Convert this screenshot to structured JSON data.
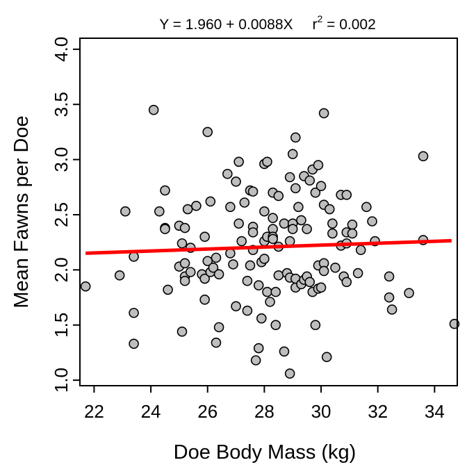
{
  "chart_data": {
    "type": "scatter",
    "title_parts": {
      "equation": "Y = 1.960 + 0.0088X",
      "r_label": "r",
      "r_exponent": "2",
      "r_value": " = 0.002"
    },
    "xlabel": "Doe Body Mass (kg)",
    "ylabel": "Mean Fawns per Doe",
    "xlim": [
      21.5,
      34.8
    ],
    "ylim": [
      0.95,
      4.1
    ],
    "xticks": [
      "22",
      "24",
      "26",
      "28",
      "30",
      "32",
      "34"
    ],
    "yticks": [
      "1.0",
      "1.5",
      "2.0",
      "2.5",
      "3.0",
      "3.5",
      "4.0"
    ],
    "grid": false,
    "legend": "none",
    "regression": {
      "intercept": 1.96,
      "slope": 0.0088,
      "x_range": [
        21.7,
        34.6
      ],
      "color": "#ff0000"
    },
    "marker_fill": "#bebebe",
    "marker_stroke": "#000000",
    "points": [
      [
        21.7,
        1.85
      ],
      [
        22.9,
        1.95
      ],
      [
        23.1,
        2.53
      ],
      [
        23.4,
        2.12
      ],
      [
        23.4,
        1.61
      ],
      [
        23.4,
        1.33
      ],
      [
        24.1,
        3.45
      ],
      [
        24.3,
        2.53
      ],
      [
        24.5,
        2.72
      ],
      [
        24.5,
        2.38
      ],
      [
        24.5,
        2.37
      ],
      [
        24.6,
        1.82
      ],
      [
        25.0,
        2.4
      ],
      [
        25.0,
        2.03
      ],
      [
        25.1,
        2.24
      ],
      [
        25.1,
        1.44
      ],
      [
        25.2,
        2.38
      ],
      [
        25.2,
        2.06
      ],
      [
        25.2,
        1.94
      ],
      [
        25.2,
        1.9
      ],
      [
        25.3,
        2.55
      ],
      [
        25.4,
        2.2
      ],
      [
        25.4,
        1.98
      ],
      [
        25.6,
        2.58
      ],
      [
        25.8,
        1.96
      ],
      [
        25.9,
        2.3
      ],
      [
        25.9,
        1.73
      ],
      [
        25.9,
        1.92
      ],
      [
        26.0,
        3.25
      ],
      [
        26.0,
        2.08
      ],
      [
        26.1,
        2.62
      ],
      [
        26.1,
        1.98
      ],
      [
        26.2,
        2.02
      ],
      [
        26.3,
        2.11
      ],
      [
        26.3,
        1.34
      ],
      [
        26.4,
        1.48
      ],
      [
        26.4,
        1.96
      ],
      [
        26.7,
        2.87
      ],
      [
        26.8,
        2.57
      ],
      [
        26.8,
        2.15
      ],
      [
        26.9,
        2.05
      ],
      [
        27.0,
        2.8
      ],
      [
        27.0,
        1.67
      ],
      [
        27.1,
        2.98
      ],
      [
        27.1,
        2.42
      ],
      [
        27.2,
        2.26
      ],
      [
        27.3,
        2.61
      ],
      [
        27.4,
        1.9
      ],
      [
        27.4,
        1.63
      ],
      [
        27.5,
        2.72
      ],
      [
        27.5,
        2.04
      ],
      [
        27.6,
        2.71
      ],
      [
        27.6,
        2.39
      ],
      [
        27.6,
        2.34
      ],
      [
        27.6,
        2.18
      ],
      [
        27.7,
        1.18
      ],
      [
        27.8,
        1.86
      ],
      [
        27.8,
        1.29
      ],
      [
        27.9,
        1.56
      ],
      [
        27.9,
        2.07
      ],
      [
        28.0,
        2.1
      ],
      [
        28.0,
        2.26
      ],
      [
        28.0,
        2.53
      ],
      [
        28.0,
        2.96
      ],
      [
        28.1,
        2.98
      ],
      [
        28.1,
        2.3
      ],
      [
        28.1,
        1.8
      ],
      [
        28.2,
        1.71
      ],
      [
        28.3,
        2.7
      ],
      [
        28.3,
        2.47
      ],
      [
        28.3,
        2.37
      ],
      [
        28.3,
        2.3
      ],
      [
        28.3,
        2.28
      ],
      [
        28.4,
        1.8
      ],
      [
        28.4,
        1.5
      ],
      [
        28.5,
        2.67
      ],
      [
        28.5,
        2.21
      ],
      [
        28.5,
        1.95
      ],
      [
        28.7,
        2.42
      ],
      [
        28.7,
        1.26
      ],
      [
        28.8,
        1.97
      ],
      [
        28.9,
        1.06
      ],
      [
        28.9,
        1.93
      ],
      [
        28.9,
        2.26
      ],
      [
        28.9,
        2.84
      ],
      [
        29.0,
        3.05
      ],
      [
        29.0,
        2.42
      ],
      [
        29.0,
        2.37
      ],
      [
        29.1,
        3.2
      ],
      [
        29.1,
        2.74
      ],
      [
        29.1,
        1.84
      ],
      [
        29.1,
        1.92
      ],
      [
        29.2,
        2.57
      ],
      [
        29.3,
        2.45
      ],
      [
        29.3,
        1.87
      ],
      [
        29.4,
        2.85
      ],
      [
        29.4,
        1.91
      ],
      [
        29.5,
        2.37
      ],
      [
        29.5,
        1.94
      ],
      [
        29.6,
        2.81
      ],
      [
        29.6,
        1.89
      ],
      [
        29.7,
        2.91
      ],
      [
        29.7,
        1.8
      ],
      [
        29.8,
        2.7
      ],
      [
        29.8,
        1.5
      ],
      [
        29.9,
        2.95
      ],
      [
        29.9,
        2.04
      ],
      [
        29.9,
        1.83
      ],
      [
        30.0,
        2.76
      ],
      [
        30.0,
        1.84
      ],
      [
        30.1,
        3.42
      ],
      [
        30.1,
        2.59
      ],
      [
        30.1,
        2.06
      ],
      [
        30.1,
        1.99
      ],
      [
        30.2,
        1.21
      ],
      [
        30.3,
        2.55
      ],
      [
        30.4,
        2.42
      ],
      [
        30.4,
        2.33
      ],
      [
        30.5,
        2.02
      ],
      [
        30.7,
        2.22
      ],
      [
        30.7,
        2.68
      ],
      [
        30.8,
        1.94
      ],
      [
        30.9,
        2.34
      ],
      [
        30.9,
        2.68
      ],
      [
        30.9,
        2.24
      ],
      [
        30.9,
        1.89
      ],
      [
        31.1,
        2.41
      ],
      [
        31.1,
        2.33
      ],
      [
        31.3,
        1.97
      ],
      [
        31.4,
        2.18
      ],
      [
        31.6,
        2.57
      ],
      [
        31.8,
        2.44
      ],
      [
        31.9,
        2.26
      ],
      [
        32.4,
        1.94
      ],
      [
        32.4,
        1.75
      ],
      [
        32.5,
        1.64
      ],
      [
        33.1,
        1.79
      ],
      [
        33.6,
        3.03
      ],
      [
        33.6,
        2.27
      ],
      [
        34.7,
        1.51
      ]
    ]
  }
}
